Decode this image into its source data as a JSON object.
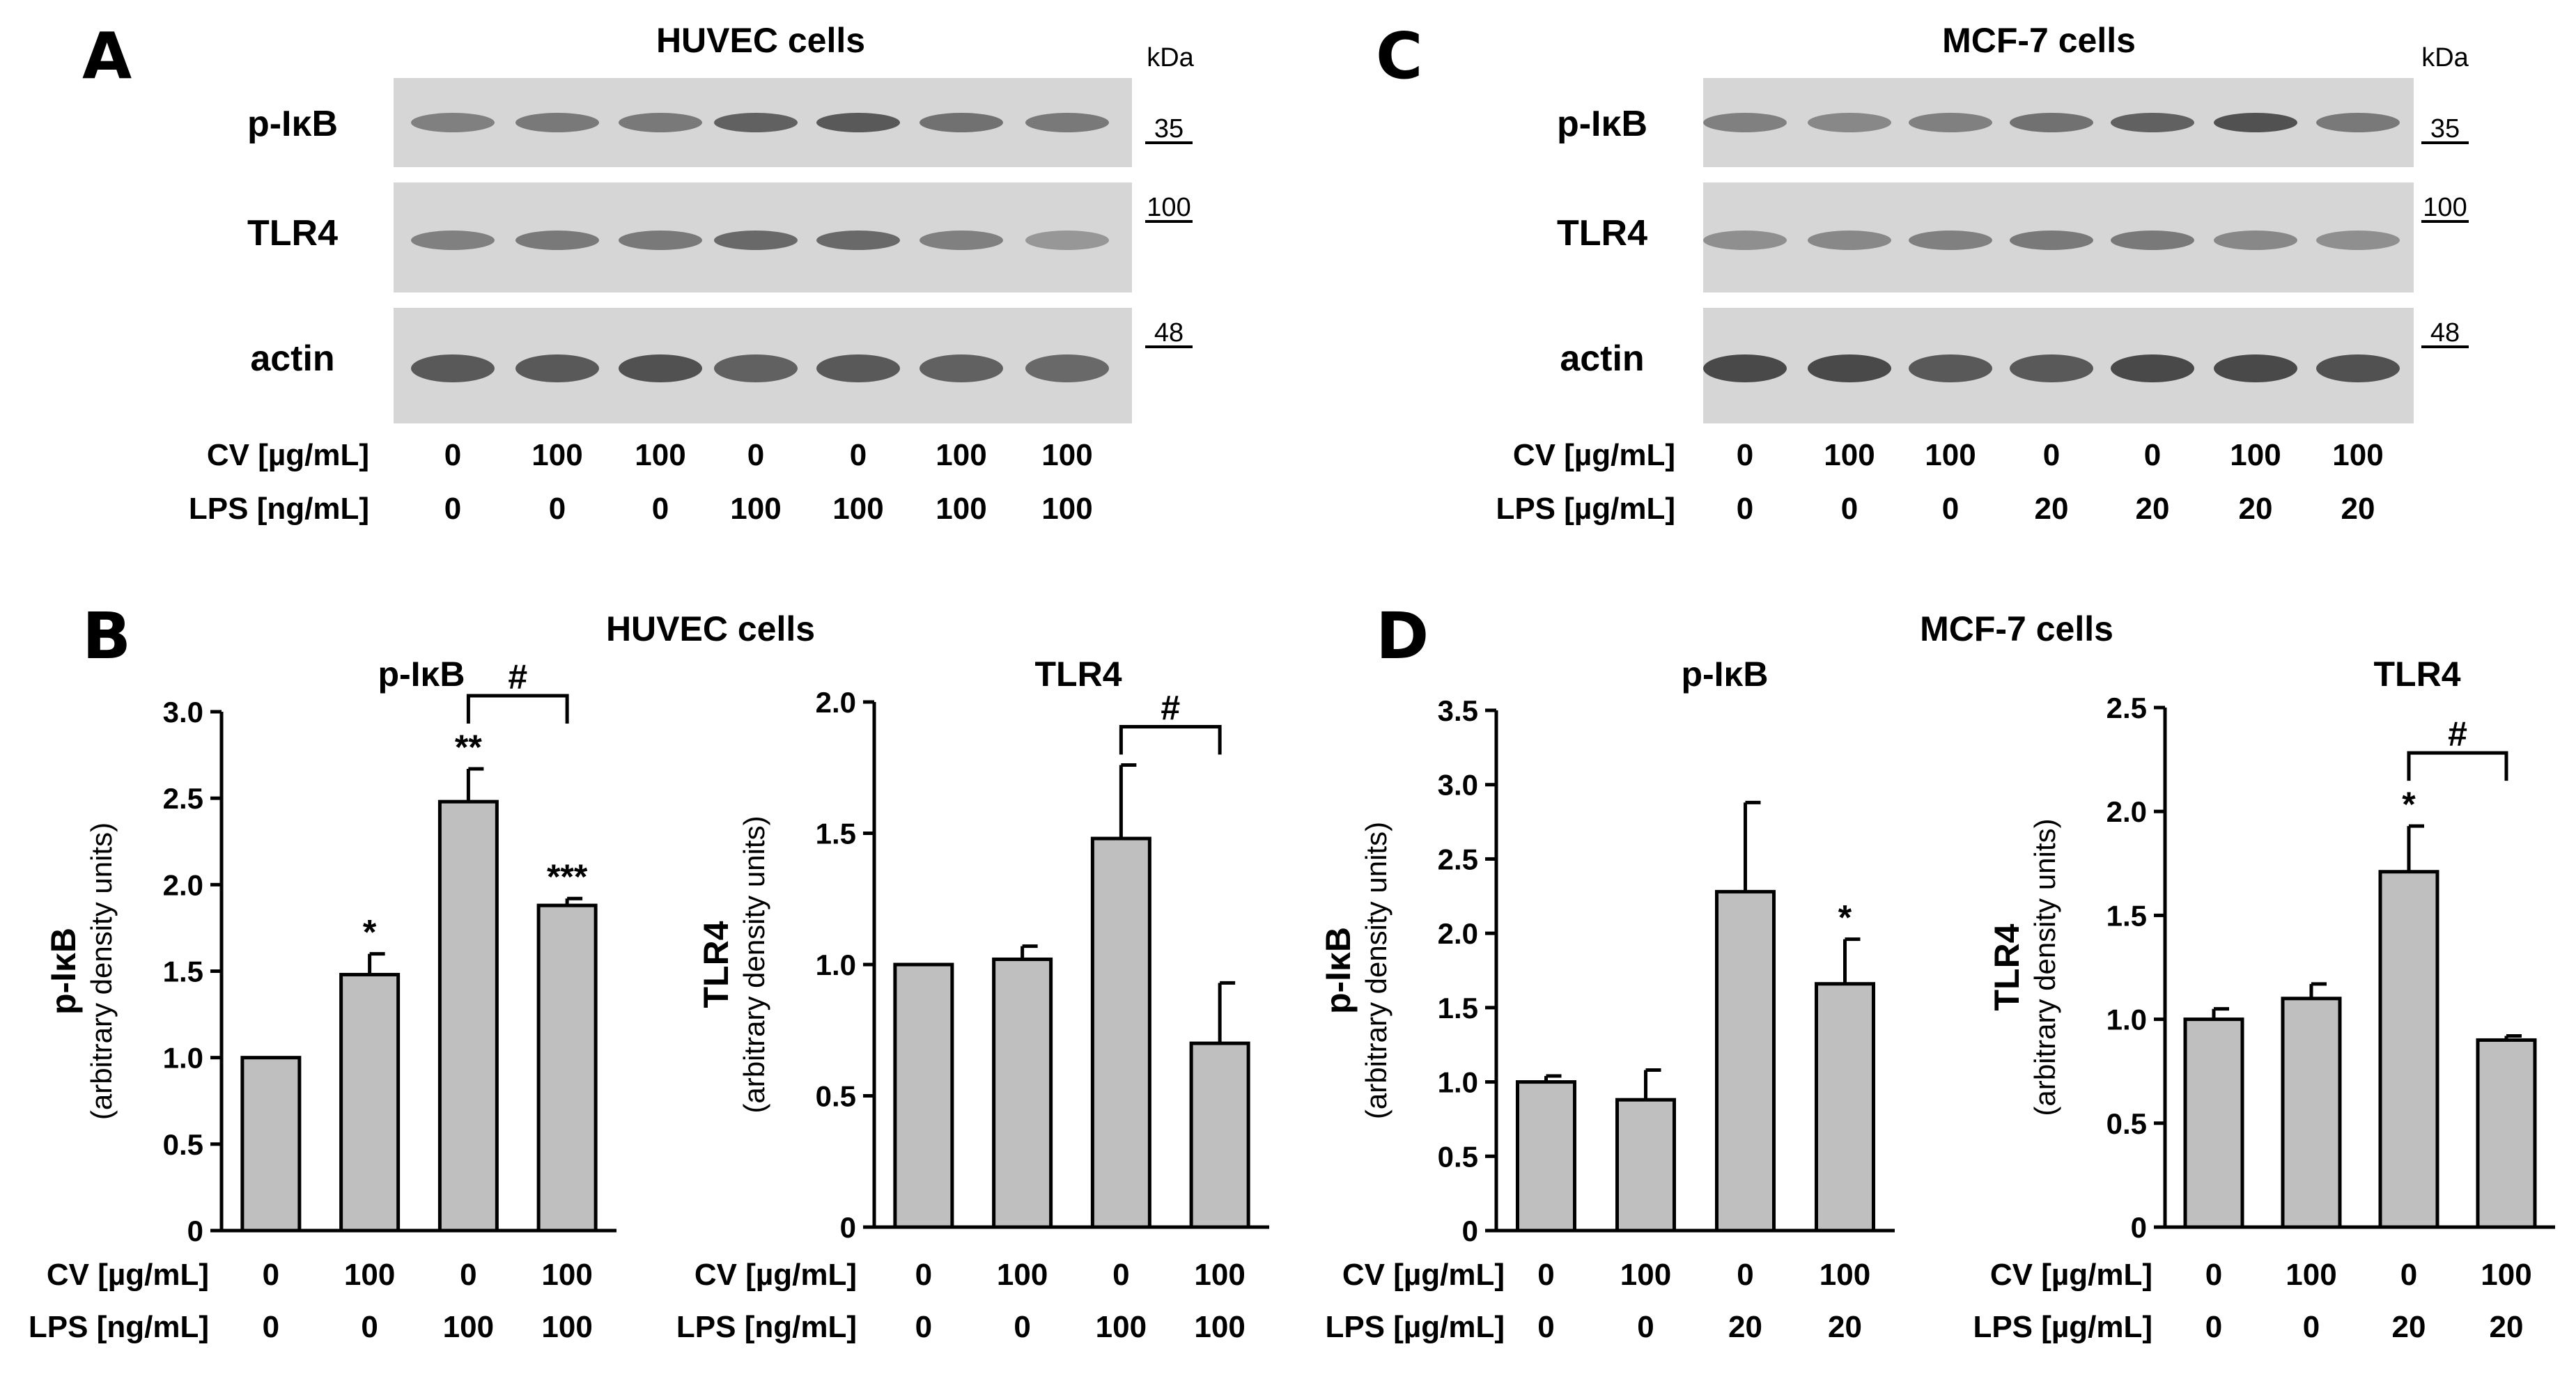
{
  "colors": {
    "bar_fill": "#bfbfbf",
    "bar_stroke": "#000000",
    "axis": "#000000",
    "blot_bg": "#d6d6d6",
    "band": "#3a3a3a"
  },
  "panel_letters": {
    "A": "A",
    "B": "B",
    "C": "C",
    "D": "D"
  },
  "panel_A": {
    "title": "HUVEC cells",
    "unit": "kDa",
    "rows": [
      "p-IκB",
      "TLR4",
      "actin"
    ],
    "markers": [
      "35",
      "100",
      "48"
    ],
    "cond_labels": [
      "CV [µg/mL]",
      "LPS [ng/mL]"
    ],
    "cv": [
      "0",
      "100",
      "100",
      "0",
      "0",
      "100",
      "100"
    ],
    "lps": [
      "0",
      "0",
      "0",
      "100",
      "100",
      "100",
      "100"
    ]
  },
  "panel_C": {
    "title": "MCF-7 cells",
    "unit": "kDa",
    "rows": [
      "p-IκB",
      "TLR4",
      "actin"
    ],
    "markers": [
      "35",
      "100",
      "48"
    ],
    "cond_labels": [
      "CV [µg/mL]",
      "LPS [µg/mL]"
    ],
    "cv": [
      "0",
      "100",
      "100",
      "0",
      "0",
      "100",
      "100"
    ],
    "lps": [
      "0",
      "0",
      "0",
      "20",
      "20",
      "20",
      "20"
    ]
  },
  "panel_B": {
    "title": "HUVEC cells"
  },
  "panel_D": {
    "title": "MCF-7 cells"
  },
  "chart_data": [
    {
      "type": "bar",
      "panel": "B",
      "title": "p-IκB",
      "ylabel": "p-IκB",
      "ylabel2": "(arbitrary density units)",
      "ylim": [
        0,
        3.0
      ],
      "yticks": [
        "0",
        "0.5",
        "1.0",
        "1.5",
        "2.0",
        "2.5",
        "3.0"
      ],
      "values": [
        1.0,
        1.48,
        2.48,
        1.88
      ],
      "errors": [
        0.0,
        0.12,
        0.19,
        0.04
      ],
      "sig": [
        "",
        "*",
        "**",
        "***"
      ],
      "bracket": {
        "from": 2,
        "to": 3,
        "label": "#"
      },
      "cond_labels": [
        "CV [µg/mL]",
        "LPS [ng/mL]"
      ],
      "cv": [
        "0",
        "100",
        "0",
        "100"
      ],
      "lps": [
        "0",
        "0",
        "100",
        "100"
      ]
    },
    {
      "type": "bar",
      "panel": "B",
      "title": "TLR4",
      "ylabel": "TLR4",
      "ylabel2": "(arbitrary density units)",
      "ylim": [
        0,
        2.0
      ],
      "yticks": [
        "0",
        "0.5",
        "1.0",
        "1.5",
        "2.0"
      ],
      "values": [
        1.0,
        1.02,
        1.48,
        0.7
      ],
      "errors": [
        0.0,
        0.05,
        0.28,
        0.23
      ],
      "sig": [
        "",
        "",
        "",
        ""
      ],
      "bracket": {
        "from": 2,
        "to": 3,
        "label": "#"
      },
      "cond_labels": [
        "CV [µg/mL]",
        "LPS [ng/mL]"
      ],
      "cv": [
        "0",
        "100",
        "0",
        "100"
      ],
      "lps": [
        "0",
        "0",
        "100",
        "100"
      ]
    },
    {
      "type": "bar",
      "panel": "D",
      "title": "p-IκB",
      "ylabel": "p-IκB",
      "ylabel2": "(arbitrary density units)",
      "ylim": [
        0,
        3.5
      ],
      "yticks": [
        "0",
        "0.5",
        "1.0",
        "1.5",
        "2.0",
        "2.5",
        "3.0",
        "3.5"
      ],
      "values": [
        1.0,
        0.88,
        2.28,
        1.66
      ],
      "errors": [
        0.04,
        0.2,
        0.6,
        0.3
      ],
      "sig": [
        "",
        "",
        "",
        "*"
      ],
      "bracket": null,
      "cond_labels": [
        "CV [µg/mL]",
        "LPS [µg/mL]"
      ],
      "cv": [
        "0",
        "100",
        "0",
        "100"
      ],
      "lps": [
        "0",
        "0",
        "20",
        "20"
      ]
    },
    {
      "type": "bar",
      "panel": "D",
      "title": "TLR4",
      "ylabel": "TLR4",
      "ylabel2": "(arbitrary density units)",
      "ylim": [
        0,
        2.5
      ],
      "yticks": [
        "0",
        "0.5",
        "1.0",
        "1.5",
        "2.0",
        "2.5"
      ],
      "values": [
        1.0,
        1.1,
        1.71,
        0.9
      ],
      "errors": [
        0.05,
        0.07,
        0.22,
        0.02
      ],
      "sig": [
        "",
        "",
        "*",
        ""
      ],
      "bracket": {
        "from": 2,
        "to": 3,
        "label": "#"
      },
      "cond_labels": [
        "CV [µg/mL]",
        "LPS [µg/mL]"
      ],
      "cv": [
        "0",
        "100",
        "0",
        "100"
      ],
      "lps": [
        "0",
        "0",
        "20",
        "20"
      ]
    }
  ]
}
